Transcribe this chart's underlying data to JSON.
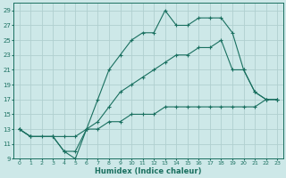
{
  "xlabel": "Humidex (Indice chaleur)",
  "xlim": [
    -0.5,
    23.5
  ],
  "ylim": [
    9,
    30
  ],
  "yticks": [
    9,
    11,
    13,
    15,
    17,
    19,
    21,
    23,
    25,
    27,
    29
  ],
  "xticks": [
    0,
    1,
    2,
    3,
    4,
    5,
    6,
    7,
    8,
    9,
    10,
    11,
    12,
    13,
    14,
    15,
    16,
    17,
    18,
    19,
    20,
    21,
    22,
    23
  ],
  "bg_color": "#cde8e8",
  "grid_color": "#b0cfcf",
  "line_color": "#1a7060",
  "curve1_x": [
    0,
    1,
    3,
    4,
    5,
    6,
    7,
    8,
    9,
    10,
    11,
    12,
    13,
    14,
    15,
    16,
    17,
    18,
    19,
    20,
    21,
    22,
    23
  ],
  "curve1_y": [
    13,
    12,
    12,
    10,
    9,
    13,
    17,
    21,
    23,
    25,
    26,
    26,
    29,
    27,
    27,
    28,
    28,
    28,
    26,
    21,
    18,
    17,
    17
  ],
  "curve2_x": [
    0,
    1,
    3,
    4,
    5,
    6,
    7,
    8,
    9,
    10,
    11,
    12,
    13,
    14,
    15,
    16,
    17,
    18,
    19,
    20,
    21,
    22,
    23
  ],
  "curve2_y": [
    13,
    12,
    12,
    10,
    10,
    13,
    14,
    16,
    18,
    19,
    20,
    21,
    22,
    23,
    23,
    24,
    24,
    25,
    21,
    21,
    18,
    17,
    17
  ],
  "curve3_x": [
    0,
    1,
    2,
    3,
    4,
    5,
    6,
    7,
    8,
    9,
    10,
    11,
    12,
    13,
    14,
    15,
    16,
    17,
    18,
    19,
    20,
    21,
    22,
    23
  ],
  "curve3_y": [
    13,
    12,
    12,
    12,
    12,
    12,
    13,
    13,
    14,
    14,
    15,
    15,
    15,
    16,
    16,
    16,
    16,
    16,
    16,
    16,
    16,
    16,
    17,
    17
  ]
}
